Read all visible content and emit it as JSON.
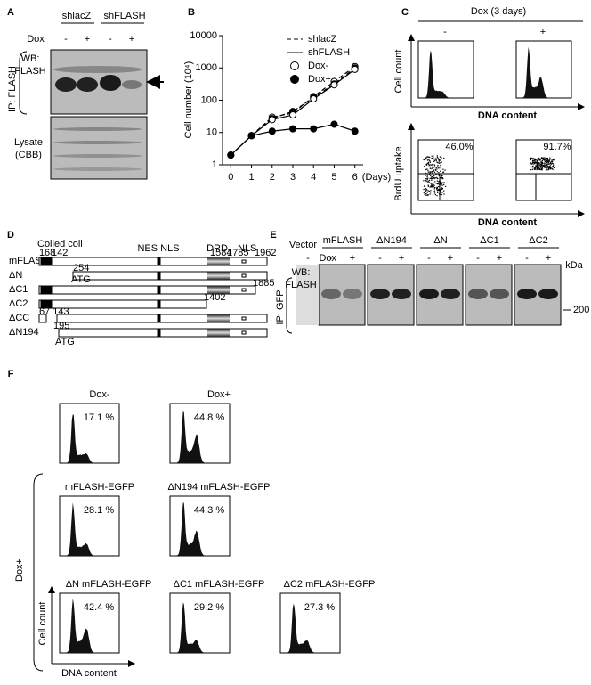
{
  "chart_data": {
    "type": "line",
    "panel_label": "B",
    "ylabel": "Cell number (10⁴)",
    "x_unit": "(Days)",
    "log_scale": true,
    "color": "#000000",
    "x": [
      0,
      1,
      2,
      3,
      4,
      5,
      6
    ],
    "xlim": [
      -0.4,
      6.4
    ],
    "xticks": [
      0,
      1,
      2,
      3,
      4,
      5,
      6
    ],
    "ylim": [
      1,
      10000
    ],
    "yticks": [
      1,
      10,
      100,
      1000,
      10000
    ],
    "series": [
      {
        "line": "dashed",
        "marker": "open",
        "values": [
          2,
          8,
          30,
          40,
          130,
          380,
          1100
        ]
      },
      {
        "line": "dashed",
        "marker": "filled",
        "values": [
          2,
          8,
          27,
          45,
          120,
          320,
          1000
        ]
      },
      {
        "line": "solid",
        "marker": "open",
        "values": [
          2,
          8,
          25,
          35,
          110,
          300,
          900
        ]
      },
      {
        "line": "solid",
        "marker": "filled",
        "values": [
          2,
          8,
          11,
          13,
          13,
          18,
          11
        ]
      }
    ],
    "legend": [
      {
        "label": "shlacZ",
        "line": "dashed"
      },
      {
        "label": "shFLASH",
        "line": "solid"
      },
      {
        "label": "Dox-",
        "marker": "open"
      },
      {
        "label": "Dox+",
        "marker": "filled"
      }
    ]
  },
  "panel_A": {
    "label": "A",
    "groups": [
      "shlacZ",
      "shFLASH"
    ],
    "dox": "Dox",
    "signs": [
      "-",
      "+",
      "-",
      "+"
    ],
    "wb": "WB:",
    "wb_target": "FLASH",
    "ip": "IP: FLASH",
    "lysate": "Lysate",
    "cbb": "(CBB)"
  },
  "panel_C": {
    "label": "C",
    "dox": "Dox (3 days)",
    "signs": [
      "-",
      "+"
    ],
    "top_ylabel": "Cell count",
    "top_xlabel": "DNA content",
    "bottom_ylabel": "BrdU uptake",
    "bottom_xlabel": "DNA content",
    "percents": [
      "46.0%",
      "91.7%"
    ]
  },
  "panel_D": {
    "label": "D",
    "coiled_coil": "Coiled coil",
    "nes_nls": "NES NLS",
    "drd": "DRD",
    "nls": "NLS",
    "positions": [
      "1",
      "68",
      "142",
      "1584",
      "1785",
      "1962"
    ],
    "constructs": [
      {
        "name": "mFLASH"
      },
      {
        "name": "ΔN",
        "start": "254",
        "atg": "ATG"
      },
      {
        "name": "ΔC1",
        "end": "1885"
      },
      {
        "name": "ΔC2",
        "end": "1402"
      },
      {
        "name": "ΔCC",
        "start": "67 143"
      },
      {
        "name": "ΔN194",
        "start": "195",
        "atg": "ATG"
      }
    ]
  },
  "panel_E": {
    "label": "E",
    "vector": "Vector",
    "dox": "Dox",
    "lanes": [
      "mFLASH",
      "ΔN194",
      "ΔN",
      "ΔC1",
      "ΔC2"
    ],
    "vector_sign": "-",
    "signs": [
      "-",
      "+"
    ],
    "wb": "WB:",
    "wb_target": "FLASH",
    "ip": "IP: GFP",
    "kda": "kDa",
    "marker": "200"
  },
  "panel_F": {
    "label": "F",
    "side_label": "Dox+",
    "ylabel": "Cell count",
    "xlabel": "DNA content",
    "plots": [
      {
        "title": "Dox-",
        "percent": "17.1 %"
      },
      {
        "title": "Dox+",
        "percent": "44.8 %"
      },
      {
        "title": "mFLASH-EGFP",
        "percent": "28.1 %"
      },
      {
        "title": "ΔN194 mFLASH-EGFP",
        "percent": "44.3 %"
      },
      {
        "title": "ΔN mFLASH-EGFP",
        "percent": "42.4 %"
      },
      {
        "title": "ΔC1 mFLASH-EGFP",
        "percent": "29.2 %"
      },
      {
        "title": "ΔC2 mFLASH-EGFP",
        "percent": "27.3 %"
      }
    ]
  }
}
